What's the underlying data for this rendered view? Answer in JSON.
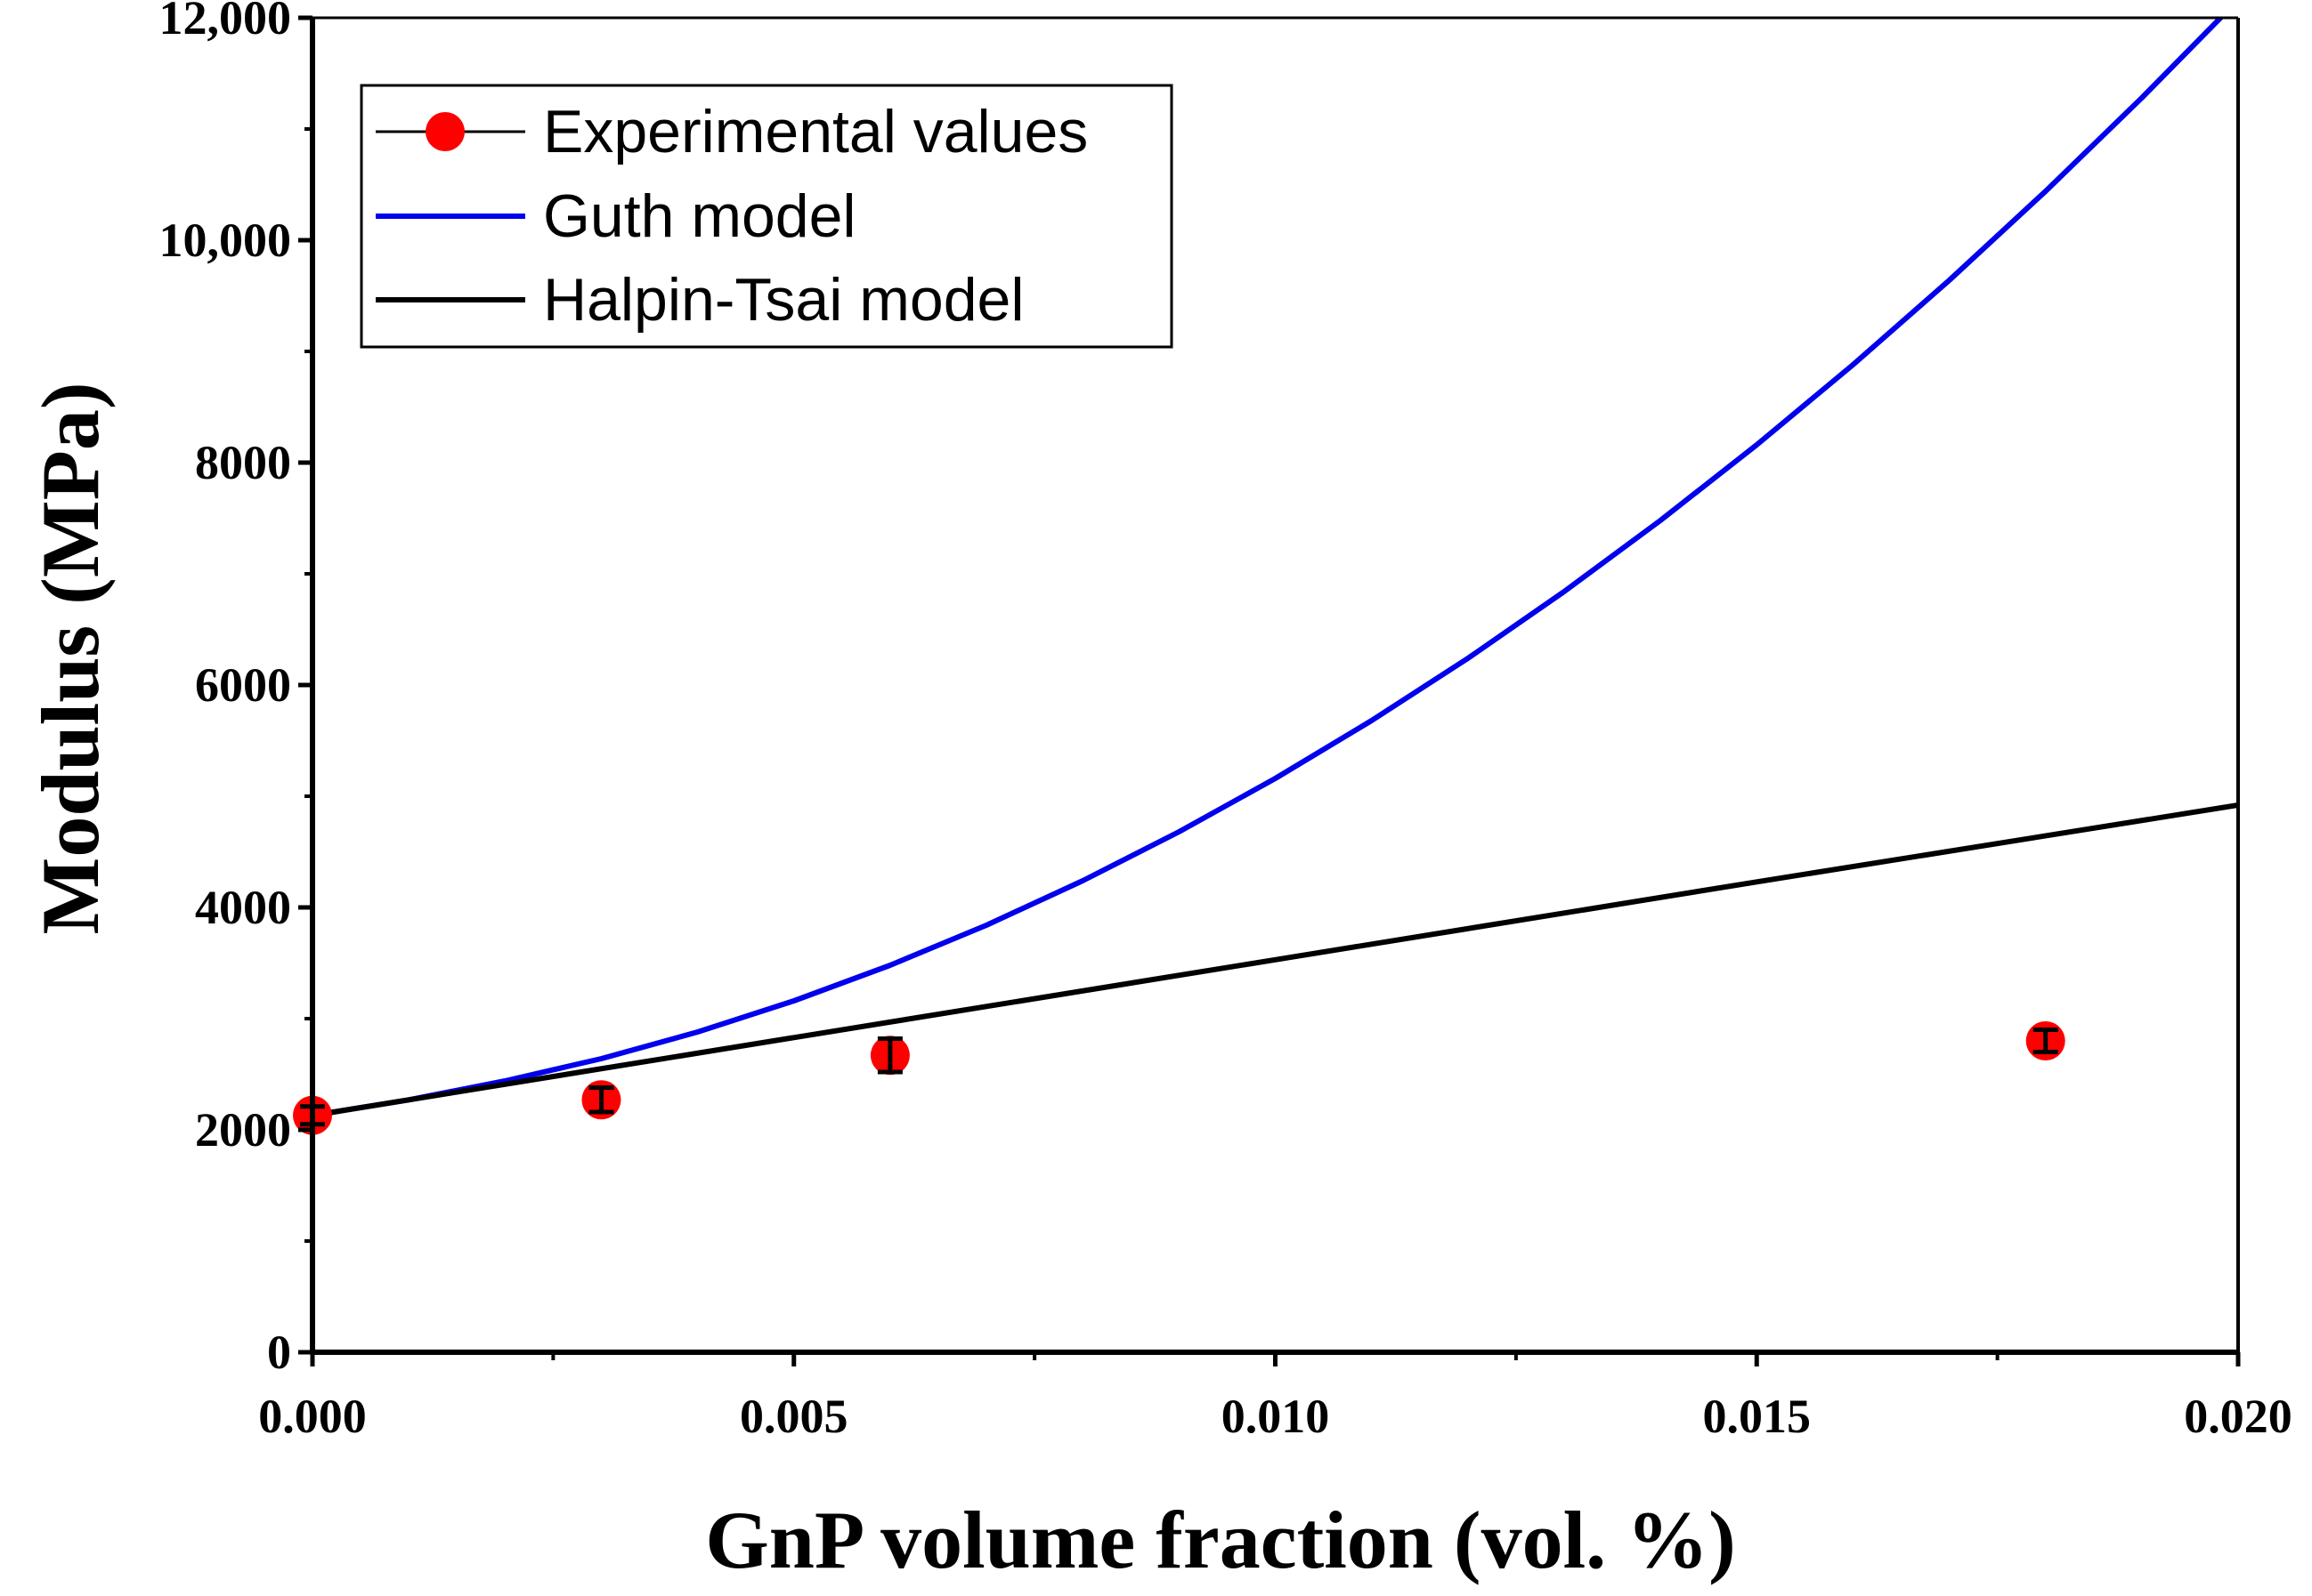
{
  "chart_data": {
    "type": "line",
    "xlabel": "GnP volume fraction (vol. %)",
    "ylabel": "Modulus (MPa)",
    "xlim": [
      0,
      0.02
    ],
    "ylim": [
      0,
      12000
    ],
    "x_ticks": [
      {
        "value": 0.0,
        "label": "0.000"
      },
      {
        "value": 0.005,
        "label": "0.005"
      },
      {
        "value": 0.01,
        "label": "0.010"
      },
      {
        "value": 0.015,
        "label": "0.015"
      },
      {
        "value": 0.02,
        "label": "0.020"
      }
    ],
    "y_ticks": [
      {
        "value": 0,
        "label": "0"
      },
      {
        "value": 2000,
        "label": "2000"
      },
      {
        "value": 4000,
        "label": "4000"
      },
      {
        "value": 6000,
        "label": "6000"
      },
      {
        "value": 8000,
        "label": "8000"
      },
      {
        "value": 10000,
        "label": "10,000"
      },
      {
        "value": 12000,
        "label": "12,000"
      }
    ],
    "legend": {
      "placement": "top-left",
      "entries": [
        {
          "label": "Experimental values",
          "style": "marker-line",
          "color": "#ff0000"
        },
        {
          "label": "Guth model",
          "style": "line",
          "color": "#0000ee"
        },
        {
          "label": "Halpin-Tsai model",
          "style": "line",
          "color": "#000000"
        }
      ]
    },
    "series": [
      {
        "name": "Experimental values",
        "kind": "scatter",
        "color": "#ff0000",
        "x": [
          0.0,
          0.003,
          0.006,
          0.018
        ],
        "y": [
          2130,
          2270,
          2670,
          2800
        ],
        "err": [
          80,
          110,
          150,
          100
        ]
      },
      {
        "name": "Guth model",
        "kind": "line",
        "color": "#0000ee",
        "x": [
          0.0,
          0.001,
          0.002,
          0.003,
          0.004,
          0.005,
          0.006,
          0.007,
          0.008,
          0.009,
          0.01,
          0.011,
          0.012,
          0.013,
          0.014,
          0.015,
          0.016,
          0.017,
          0.018,
          0.019,
          0.02
        ],
        "y": [
          2130,
          2270,
          2440,
          2640,
          2880,
          3160,
          3480,
          3840,
          4240,
          4680,
          5160,
          5680,
          6240,
          6840,
          7480,
          8160,
          8880,
          9640,
          10440,
          11280,
          12160
        ]
      },
      {
        "name": "Halpin-Tsai model",
        "kind": "line",
        "color": "#000000",
        "x": [
          0.0,
          0.005,
          0.01,
          0.015,
          0.02
        ],
        "y": [
          2130,
          2830,
          3530,
          4230,
          4920
        ]
      }
    ]
  }
}
